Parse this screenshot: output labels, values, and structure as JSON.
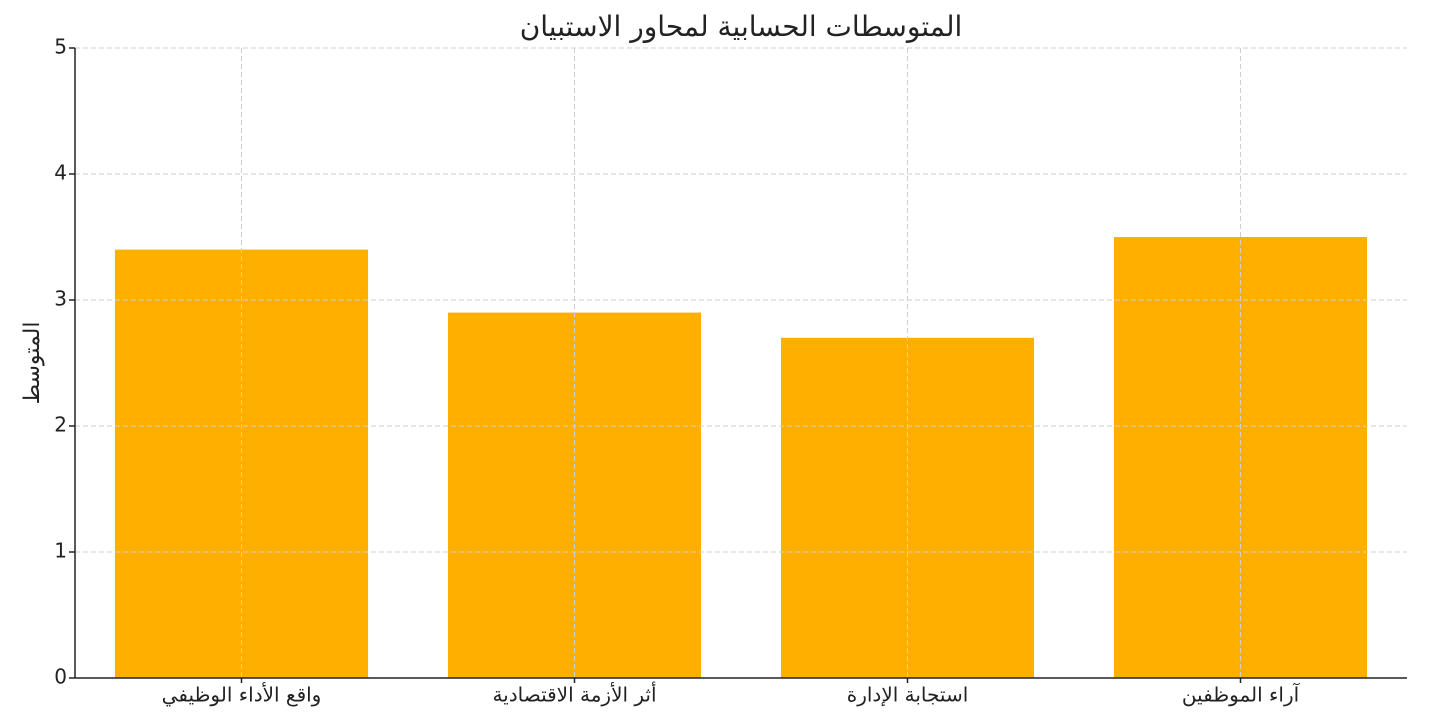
{
  "chart_data": {
    "type": "bar",
    "title": "المتوسطات الحسابية لمحاور الاستبيان",
    "y_label": "المتوسط",
    "categories": [
      "واقع الأداء الوظيفي",
      "أثر الأزمة الاقتصادية",
      "استجابة الإدارة",
      "آراء الموظفين"
    ],
    "values": [
      3.4,
      2.9,
      2.7,
      3.5
    ],
    "color": "#ffaf00",
    "ylim": [
      0,
      5
    ],
    "yticks": [
      0,
      1,
      2,
      3,
      4,
      5
    ],
    "grid": true
  }
}
